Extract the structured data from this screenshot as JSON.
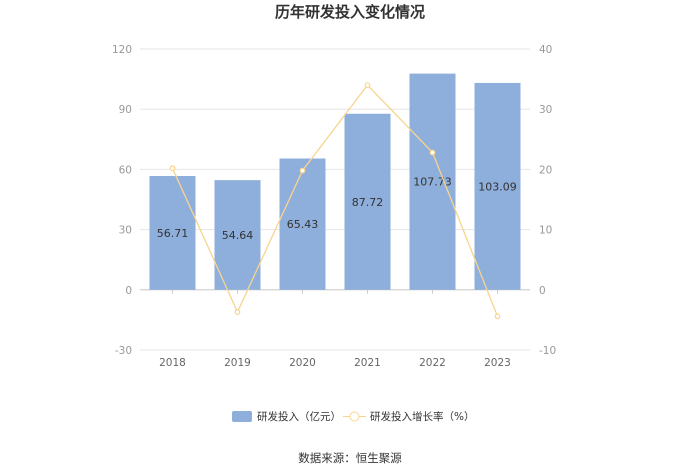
{
  "chart_data": {
    "type": "bar+line",
    "title": "历年研发投入变化情况",
    "categories": [
      "2018",
      "2019",
      "2020",
      "2021",
      "2022",
      "2023"
    ],
    "series": [
      {
        "name": "研发投入（亿元）",
        "type": "bar",
        "axis": "left",
        "color": "#8eaedb",
        "values": [
          56.71,
          54.64,
          65.43,
          87.72,
          107.73,
          103.09
        ],
        "labels": [
          "56.71",
          "54.64",
          "65.43",
          "87.72",
          "107.73",
          "103.09"
        ]
      },
      {
        "name": "研发投入增长率（%）",
        "type": "line",
        "axis": "right",
        "color": "#f8d48f",
        "values": [
          20.2,
          -3.7,
          19.8,
          34.0,
          22.8,
          -4.4
        ]
      }
    ],
    "y_left": {
      "min": -30,
      "max": 120,
      "ticks": [
        "-30",
        "0",
        "30",
        "60",
        "90",
        "120"
      ]
    },
    "y_right": {
      "min": -10,
      "max": 40,
      "ticks": [
        "-10",
        "0",
        "10",
        "20",
        "30",
        "40"
      ]
    },
    "grid": true,
    "legend_position": "bottom"
  },
  "source": "数据来源：恒生聚源"
}
